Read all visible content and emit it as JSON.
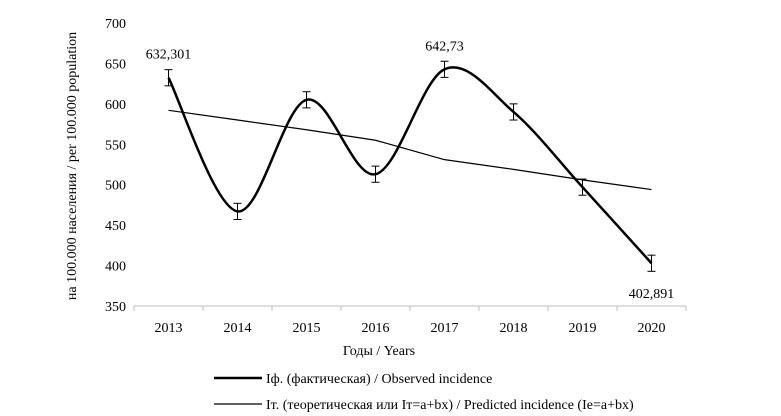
{
  "chart_data": {
    "type": "line",
    "title": "",
    "xlabel": "Годы / Years",
    "ylabel": "на 100.000 населения / per 100.000 population",
    "categories": [
      "2013",
      "2014",
      "2015",
      "2016",
      "2017",
      "2018",
      "2019",
      "2020"
    ],
    "ylim": [
      350,
      700
    ],
    "yticks": [
      "350",
      "400",
      "450",
      "500",
      "550",
      "600",
      "650",
      "700"
    ],
    "grid": false,
    "legend_position": "bottom",
    "series": [
      {
        "name": "Iф. (фактическая) / Observed incidence",
        "style": "smooth",
        "color": "#000000",
        "values": [
          632.301,
          467,
          605,
          513,
          642.73,
          590,
          497,
          402.891
        ],
        "error_bars": [
          10,
          10,
          10,
          10,
          10,
          10,
          10,
          10
        ]
      },
      {
        "name": "Iт. (теоретическая или Iт=a+bx) / Predicted incidence (Ie=a+bx)",
        "style": "straight",
        "color": "#000000",
        "values": [
          592,
          580,
          568,
          555,
          531,
          519,
          506,
          494
        ]
      }
    ],
    "data_labels": [
      {
        "series": 0,
        "index": 0,
        "text": "632,301"
      },
      {
        "series": 0,
        "index": 4,
        "text": "642,73"
      },
      {
        "series": 0,
        "index": 7,
        "text": "402,891"
      }
    ]
  }
}
